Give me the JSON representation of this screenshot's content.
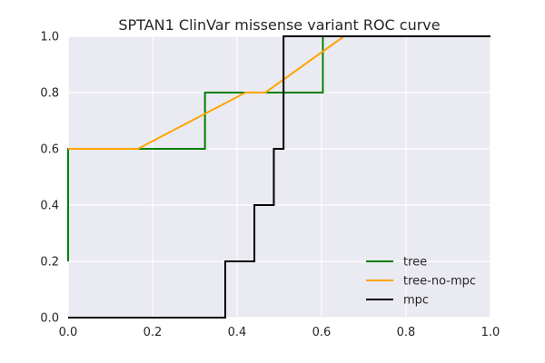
{
  "chart_data": {
    "type": "line",
    "title": "SPTAN1 ClinVar missense variant ROC curve",
    "xlabel": "",
    "ylabel": "",
    "xlim": [
      0.0,
      1.0
    ],
    "ylim": [
      0.0,
      1.0
    ],
    "x_ticks": [
      "0.0",
      "0.2",
      "0.4",
      "0.6",
      "0.8",
      "1.0"
    ],
    "y_ticks": [
      "0.0",
      "0.2",
      "0.4",
      "0.6",
      "0.8",
      "1.0"
    ],
    "grid": true,
    "legend_position": "lower-right",
    "series": [
      {
        "name": "tree",
        "color": "#008000",
        "points": [
          [
            0.0,
            0.2
          ],
          [
            0.0,
            0.6
          ],
          [
            0.324,
            0.6
          ],
          [
            0.324,
            0.8
          ],
          [
            0.603,
            0.8
          ],
          [
            0.603,
            1.0
          ],
          [
            1.0,
            1.0
          ]
        ]
      },
      {
        "name": "tree-no-mpc",
        "color": "#FFA500",
        "points": [
          [
            0.0,
            0.6
          ],
          [
            0.165,
            0.6
          ],
          [
            0.42,
            0.8
          ],
          [
            0.467,
            0.8
          ],
          [
            0.653,
            1.0
          ],
          [
            1.0,
            1.0
          ]
        ]
      },
      {
        "name": "mpc",
        "color": "#000000",
        "points": [
          [
            0.0,
            0.0
          ],
          [
            0.372,
            0.0
          ],
          [
            0.372,
            0.2
          ],
          [
            0.441,
            0.2
          ],
          [
            0.441,
            0.4
          ],
          [
            0.487,
            0.4
          ],
          [
            0.487,
            0.6
          ],
          [
            0.51,
            0.6
          ],
          [
            0.51,
            1.0
          ],
          [
            1.0,
            1.0
          ]
        ]
      }
    ]
  }
}
